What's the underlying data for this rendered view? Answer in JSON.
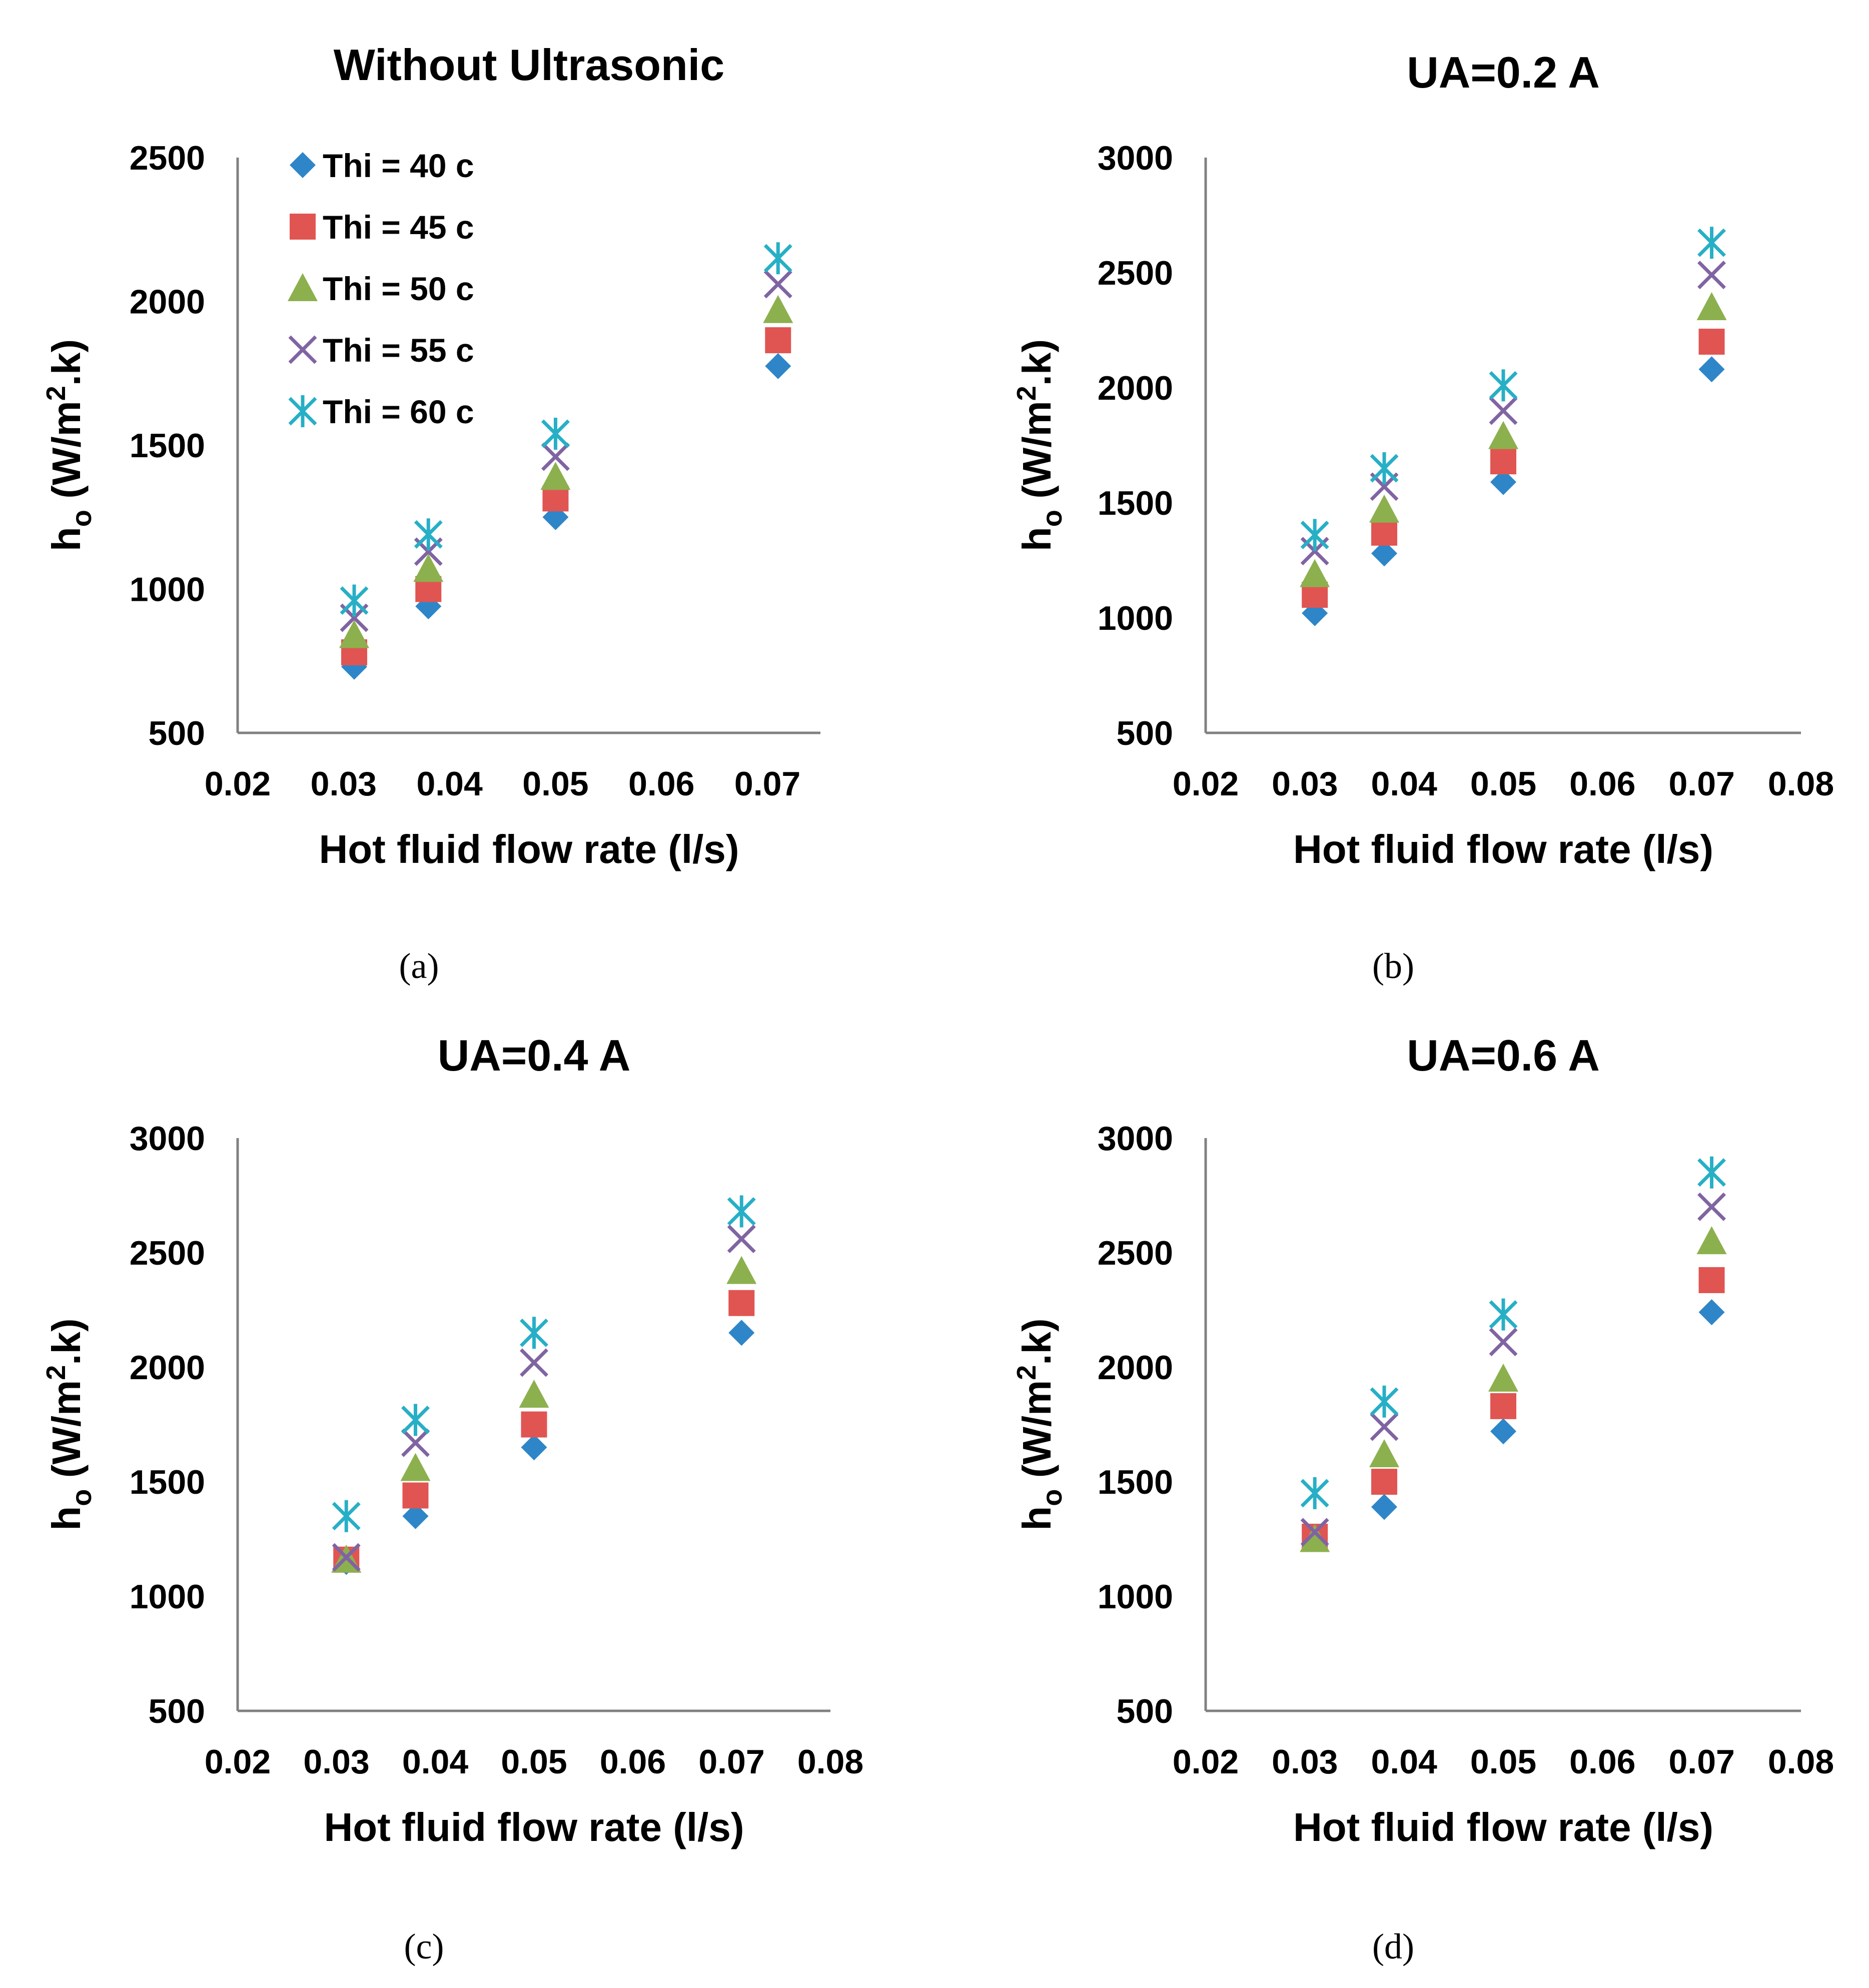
{
  "chart_data": [
    {
      "type": "scatter",
      "title": "Without Ultrasonic",
      "caption": "(a)",
      "xlabel": "Hot fluid flow rate (l/s)",
      "ylabel": {
        "main": "h",
        "sub": "o",
        "unit_pre": " (W/m",
        "unit_sup": "2",
        "unit_post": ".k)"
      },
      "xlim": [
        0.02,
        0.075
      ],
      "ylim": [
        500,
        2500
      ],
      "xticks": [
        "0.02",
        "0.03",
        "0.04",
        "0.05",
        "0.06",
        "0.07"
      ],
      "yticks": [
        "500",
        "1000",
        "1500",
        "2000",
        "2500"
      ],
      "legend": true,
      "x": [
        0.031,
        0.038,
        0.05,
        0.071
      ],
      "series": [
        {
          "name": "Thi = 40 c",
          "values": [
            730,
            940,
            1250,
            1775
          ]
        },
        {
          "name": "Thi = 45 c",
          "values": [
            780,
            1000,
            1315,
            1865
          ]
        },
        {
          "name": "Thi = 50 c",
          "values": [
            840,
            1070,
            1390,
            1970
          ]
        },
        {
          "name": "Thi = 55 c",
          "values": [
            900,
            1130,
            1460,
            2060
          ]
        },
        {
          "name": "Thi = 60 c",
          "values": [
            960,
            1190,
            1540,
            2150
          ]
        }
      ]
    },
    {
      "type": "scatter",
      "title": "UA=0.2 A",
      "caption": "(b)",
      "xlabel": "Hot fluid flow rate (l/s)",
      "ylabel": {
        "main": "h",
        "sub": "o",
        "unit_pre": " (W/m",
        "unit_sup": "2",
        "unit_post": ".k)"
      },
      "xlim": [
        0.02,
        0.08
      ],
      "ylim": [
        500,
        3000
      ],
      "xticks": [
        "0.02",
        "0.03",
        "0.04",
        "0.05",
        "0.06",
        "0.07",
        "0.08"
      ],
      "yticks": [
        "500",
        "1000",
        "1500",
        "2000",
        "2500",
        "3000"
      ],
      "legend": false,
      "x": [
        0.031,
        0.038,
        0.05,
        0.071
      ],
      "series": [
        {
          "name": "Thi = 40 c",
          "values": [
            1020,
            1280,
            1590,
            2080
          ]
        },
        {
          "name": "Thi = 45 c",
          "values": [
            1100,
            1370,
            1680,
            2200
          ]
        },
        {
          "name": "Thi = 50 c",
          "values": [
            1190,
            1470,
            1790,
            2350
          ]
        },
        {
          "name": "Thi = 55 c",
          "values": [
            1290,
            1570,
            1900,
            2490
          ]
        },
        {
          "name": "Thi = 60 c",
          "values": [
            1360,
            1650,
            2010,
            2630
          ]
        }
      ]
    },
    {
      "type": "scatter",
      "title": "UA=0.4 A",
      "caption": "(c)",
      "xlabel": "Hot fluid flow rate (l/s)",
      "ylabel": {
        "main": "h",
        "sub": "o",
        "unit_pre": " (W/m",
        "unit_sup": "2",
        "unit_post": ".k)"
      },
      "xlim": [
        0.02,
        0.08
      ],
      "ylim": [
        500,
        3000
      ],
      "xticks": [
        "0.02",
        "0.03",
        "0.04",
        "0.05",
        "0.06",
        "0.07",
        "0.08"
      ],
      "yticks": [
        "500",
        "1000",
        "1500",
        "2000",
        "2500",
        "3000"
      ],
      "legend": false,
      "x": [
        0.031,
        0.038,
        0.05,
        0.071
      ],
      "series": [
        {
          "name": "Thi = 40 c",
          "values": [
            1150,
            1350,
            1650,
            2150
          ]
        },
        {
          "name": "Thi = 45 c",
          "values": [
            1160,
            1440,
            1750,
            2280
          ]
        },
        {
          "name": "Thi = 50 c",
          "values": [
            1160,
            1560,
            1880,
            2420
          ]
        },
        {
          "name": "Thi = 55 c",
          "values": [
            1170,
            1670,
            2020,
            2560
          ]
        },
        {
          "name": "Thi = 60 c",
          "values": [
            1350,
            1770,
            2150,
            2680
          ]
        }
      ]
    },
    {
      "type": "scatter",
      "title": "UA=0.6 A",
      "caption": "(d)",
      "xlabel": "Hot fluid flow rate (l/s)",
      "ylabel": {
        "main": "h",
        "sub": "o",
        "unit_pre": " (W/m",
        "unit_sup": "2",
        "unit_post": ".k)"
      },
      "xlim": [
        0.02,
        0.08
      ],
      "ylim": [
        500,
        3000
      ],
      "xticks": [
        "0.02",
        "0.03",
        "0.04",
        "0.05",
        "0.06",
        "0.07",
        "0.08"
      ],
      "yticks": [
        "500",
        "1000",
        "1500",
        "2000",
        "2500",
        "3000"
      ],
      "legend": false,
      "x": [
        0.031,
        0.038,
        0.05,
        0.071
      ],
      "series": [
        {
          "name": "Thi = 40 c",
          "values": [
            1250,
            1390,
            1720,
            2240
          ]
        },
        {
          "name": "Thi = 45 c",
          "values": [
            1260,
            1500,
            1830,
            2380
          ]
        },
        {
          "name": "Thi = 50 c",
          "values": [
            1250,
            1620,
            1950,
            2550
          ]
        },
        {
          "name": "Thi = 55 c",
          "values": [
            1280,
            1740,
            2110,
            2700
          ]
        },
        {
          "name": "Thi = 60 c",
          "values": [
            1450,
            1850,
            2230,
            2850
          ]
        }
      ]
    }
  ],
  "series_colors": [
    "#2E86C8",
    "#E05552",
    "#8DB04E",
    "#8064A2",
    "#27AFC6"
  ],
  "series_markers": [
    "diamond-icon",
    "square-icon",
    "triangle-icon",
    "x-mark-icon",
    "asterisk-icon"
  ]
}
